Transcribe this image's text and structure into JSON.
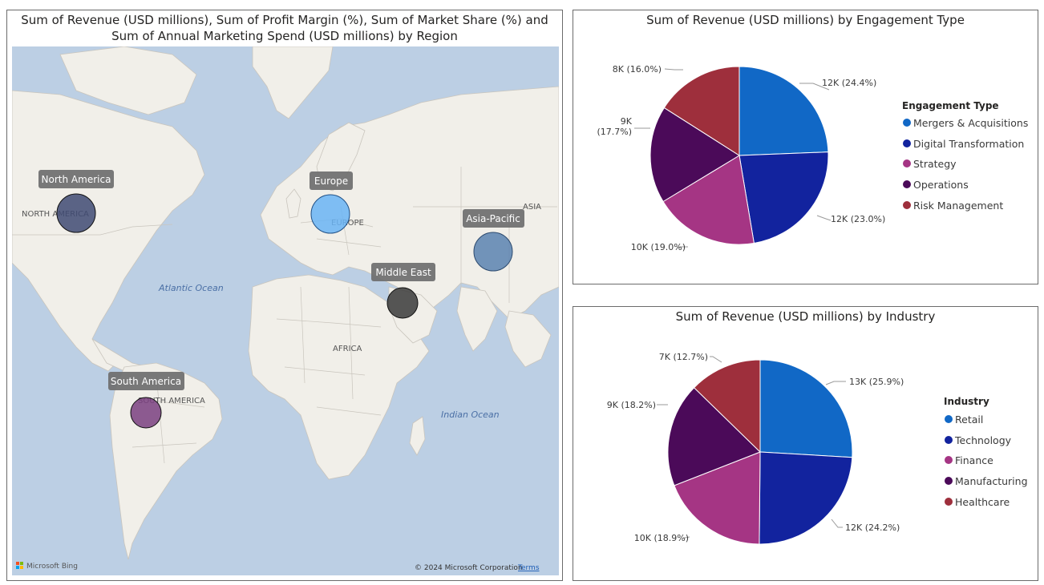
{
  "chart_data": [
    {
      "type": "map",
      "title": "Sum of Revenue (USD millions), Sum of Profit Margin (%), Sum of Market Share (%) and\nSum of Annual Marketing Spend (USD millions) by Region",
      "bubbles": [
        {
          "region": "North America",
          "color": "#3f4a73"
        },
        {
          "region": "Europe",
          "color": "#6ab4f5"
        },
        {
          "region": "Asia-Pacific",
          "color": "#5a82b0"
        },
        {
          "region": "Middle East",
          "color": "#3a3a3a"
        },
        {
          "region": "South America",
          "color": "#7a3f80"
        }
      ],
      "base_labels": {
        "north_america": "NORTH AMERICA",
        "europe": "EUROPE",
        "asia": "ASIA",
        "africa": "AFRICA",
        "south_america": "SOUTH AMERICA",
        "atlantic": "Atlantic Ocean",
        "indian": "Indian Ocean"
      },
      "attribution": {
        "logo_text": "Microsoft Bing",
        "copyright": "© 2024 Microsoft Corporation",
        "terms": "Terms"
      }
    },
    {
      "type": "pie",
      "title": "Sum of Revenue (USD millions) by Engagement Type",
      "legend_title": "Engagement Type",
      "legend_position": "right",
      "categories": [
        "Mergers & Acquisitions",
        "Digital Transformation",
        "Strategy",
        "Operations",
        "Risk Management"
      ],
      "values": [
        24.4,
        23.0,
        19.0,
        17.7,
        16.0
      ],
      "labels": [
        "12K (24.4%)",
        "12K (23.0%)",
        "10K (19.0%)",
        "9K\n(17.7%)",
        "8K (16.0%)"
      ],
      "colors": [
        "#1168c6",
        "#12239e",
        "#a53584",
        "#4b0a59",
        "#9e2f3c"
      ]
    },
    {
      "type": "pie",
      "title": "Sum of Revenue (USD millions) by Industry",
      "legend_title": "Industry",
      "legend_position": "right",
      "categories": [
        "Retail",
        "Technology",
        "Finance",
        "Manufacturing",
        "Healthcare"
      ],
      "values": [
        25.9,
        24.2,
        18.9,
        18.2,
        12.7
      ],
      "labels": [
        "13K (25.9%)",
        "12K (24.2%)",
        "10K (18.9%)",
        "9K (18.2%)",
        "7K (12.7%)"
      ],
      "colors": [
        "#1168c6",
        "#12239e",
        "#a53584",
        "#4b0a59",
        "#9e2f3c"
      ]
    }
  ]
}
